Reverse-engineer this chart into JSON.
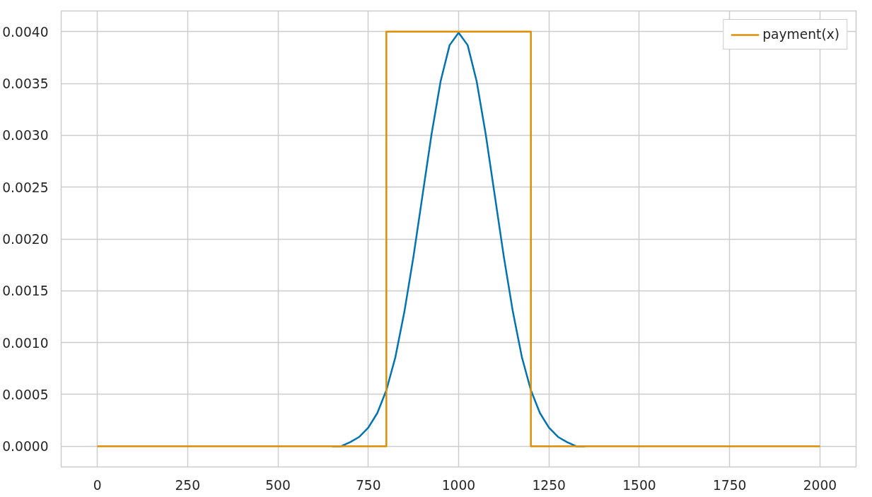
{
  "chart_data": {
    "type": "line",
    "xlim": [
      -100,
      2100
    ],
    "ylim": [
      -0.0002,
      0.0042
    ],
    "xticks": [
      0,
      250,
      500,
      750,
      1000,
      1250,
      1500,
      1750,
      2000
    ],
    "yticks": [
      {
        "value": 0,
        "label": "0.0000"
      },
      {
        "value": 0.0005,
        "label": "0.0005"
      },
      {
        "value": 0.001,
        "label": "0.0010"
      },
      {
        "value": 0.0015,
        "label": "0.0015"
      },
      {
        "value": 0.002,
        "label": "0.0020"
      },
      {
        "value": 0.0025,
        "label": "0.0025"
      },
      {
        "value": 0.003,
        "label": "0.0030"
      },
      {
        "value": 0.0035,
        "label": "0.0035"
      },
      {
        "value": 0.004,
        "label": "0.0040"
      }
    ],
    "grid": true,
    "legend": "top right",
    "line_style": "solid",
    "marker": "none",
    "series": [
      {
        "color": "#0173b2",
        "x": [
          650,
          675,
          700,
          725,
          750,
          775,
          800,
          825,
          850,
          875,
          900,
          925,
          950,
          975,
          1000,
          1025,
          1050,
          1075,
          1100,
          1125,
          1150,
          1175,
          1200,
          1225,
          1250,
          1275,
          1300,
          1325,
          1350
        ],
        "values": [
          0,
          0,
          4e-05,
          9e-05,
          0.00018,
          0.00032,
          0.00054,
          0.00086,
          0.0013,
          0.00183,
          0.00242,
          0.00301,
          0.00352,
          0.00387,
          0.00399,
          0.00387,
          0.00352,
          0.00301,
          0.00242,
          0.00183,
          0.0013,
          0.00086,
          0.00054,
          0.00032,
          0.00018,
          9e-05,
          4e-05,
          0,
          0
        ]
      },
      {
        "name": "payment(x)",
        "color": "#de8f05",
        "x": [
          0,
          800,
          800,
          1200,
          1200,
          2000
        ],
        "values": [
          0,
          0,
          0.004,
          0.004,
          0,
          0
        ]
      }
    ]
  }
}
